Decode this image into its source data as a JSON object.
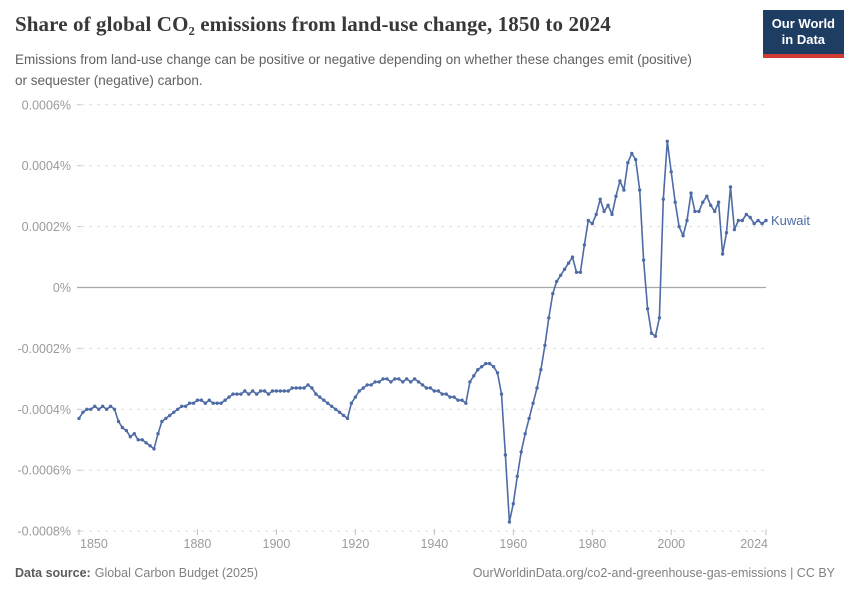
{
  "header": {
    "title": "Share of global CO₂ emissions from land-use change, 1850 to 2024",
    "subtitle": "Emissions from land-use change can be positive or negative depending on whether these changes emit (positive) or sequester (negative) carbon."
  },
  "logo": {
    "line1": "Our World",
    "line2": "in Data",
    "bg_color": "#1d3d63",
    "accent_color": "#d13b33"
  },
  "chart_data": {
    "type": "line",
    "title": "Share of global CO₂ emissions from land-use change, 1850 to 2024",
    "xlabel": "",
    "ylabel": "",
    "unit": "%",
    "grid": "dashed horizontal gridlines, solid zero line",
    "legend_position": "end-of-line entity label",
    "xlim": [
      1850,
      2024
    ],
    "ylim": [
      -0.0008,
      0.0006
    ],
    "x_start": 1850,
    "x_ticks": [
      1850,
      1880,
      1900,
      1920,
      1940,
      1960,
      1980,
      2000,
      2024
    ],
    "y_ticks": [
      {
        "label": "0.0006%",
        "value": 0.0006
      },
      {
        "label": "0.0004%",
        "value": 0.0004
      },
      {
        "label": "0.0002%",
        "value": 0.0002
      },
      {
        "label": "0%",
        "value": 0
      },
      {
        "label": "-0.0002%",
        "value": -0.0002
      },
      {
        "label": "-0.0004%",
        "value": -0.0004
      },
      {
        "label": "-0.0006%",
        "value": -0.0006
      },
      {
        "label": "-0.0008%",
        "value": -0.0008
      }
    ],
    "series": [
      {
        "name": "Kuwait",
        "color": "#4e6ba5",
        "values": [
          -0.00043,
          -0.00041,
          -0.0004,
          -0.0004,
          -0.00039,
          -0.0004,
          -0.00039,
          -0.0004,
          -0.00039,
          -0.0004,
          -0.00044,
          -0.00046,
          -0.00047,
          -0.00049,
          -0.00048,
          -0.0005,
          -0.0005,
          -0.00051,
          -0.00052,
          -0.00053,
          -0.00048,
          -0.00044,
          -0.00043,
          -0.00042,
          -0.00041,
          -0.0004,
          -0.00039,
          -0.00039,
          -0.00038,
          -0.00038,
          -0.00037,
          -0.00037,
          -0.00038,
          -0.00037,
          -0.00038,
          -0.00038,
          -0.00038,
          -0.00037,
          -0.00036,
          -0.00035,
          -0.00035,
          -0.00035,
          -0.00034,
          -0.00035,
          -0.00034,
          -0.00035,
          -0.00034,
          -0.00034,
          -0.00035,
          -0.00034,
          -0.00034,
          -0.00034,
          -0.00034,
          -0.00034,
          -0.00033,
          -0.00033,
          -0.00033,
          -0.00033,
          -0.00032,
          -0.00033,
          -0.00035,
          -0.00036,
          -0.00037,
          -0.00038,
          -0.00039,
          -0.0004,
          -0.00041,
          -0.00042,
          -0.00043,
          -0.00038,
          -0.00036,
          -0.00034,
          -0.00033,
          -0.00032,
          -0.00032,
          -0.00031,
          -0.00031,
          -0.0003,
          -0.0003,
          -0.00031,
          -0.0003,
          -0.0003,
          -0.00031,
          -0.0003,
          -0.00031,
          -0.0003,
          -0.00031,
          -0.00032,
          -0.00033,
          -0.00033,
          -0.00034,
          -0.00034,
          -0.00035,
          -0.00035,
          -0.00036,
          -0.00036,
          -0.00037,
          -0.00037,
          -0.00038,
          -0.00031,
          -0.00029,
          -0.00027,
          -0.00026,
          -0.00025,
          -0.00025,
          -0.00026,
          -0.00028,
          -0.00035,
          -0.00055,
          -0.00077,
          -0.00071,
          -0.00062,
          -0.00054,
          -0.00048,
          -0.00043,
          -0.00038,
          -0.00033,
          -0.00027,
          -0.00019,
          -0.0001,
          -2e-05,
          2e-05,
          4e-05,
          6e-05,
          8e-05,
          0.0001,
          5e-05,
          5e-05,
          0.00014,
          0.00022,
          0.00021,
          0.00024,
          0.00029,
          0.00025,
          0.00027,
          0.00024,
          0.0003,
          0.00035,
          0.00032,
          0.00041,
          0.00044,
          0.00042,
          0.00032,
          9e-05,
          -7e-05,
          -0.00015,
          -0.00016,
          -0.0001,
          0.00029,
          0.00048,
          0.00038,
          0.00028,
          0.0002,
          0.00017,
          0.00022,
          0.00031,
          0.00025,
          0.00025,
          0.00028,
          0.0003,
          0.00027,
          0.00025,
          0.00028,
          0.00011,
          0.00018,
          0.00033,
          0.00019,
          0.00022,
          0.00022,
          0.00024,
          0.00023,
          0.00021,
          0.00022,
          0.00021,
          0.00022
        ]
      }
    ]
  },
  "footer": {
    "source_label": "Data source:",
    "source_value": "Global Carbon Budget (2025)",
    "link": "OurWorldinData.org/co2-and-greenhouse-gas-emissions",
    "divider": " | ",
    "license": "CC BY"
  }
}
